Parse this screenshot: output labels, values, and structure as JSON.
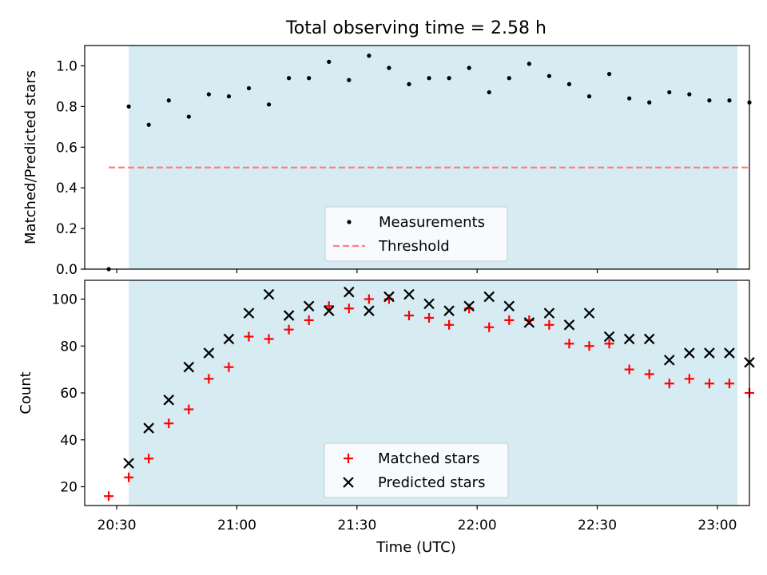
{
  "title": "Total observing time = 2.58 h",
  "xlabel": "Time (UTC)",
  "chart_data": [
    {
      "type": "scatter",
      "ylabel": "Matched/Predicted stars",
      "ylim": [
        0,
        1.1
      ],
      "yticks": [
        0.0,
        0.2,
        0.4,
        0.6,
        0.8,
        1.0
      ],
      "ytick_labels": [
        "0.0",
        "0.2",
        "0.4",
        "0.6",
        "0.8",
        "1.0"
      ],
      "xlim": [
        "20:22",
        "23:08"
      ],
      "shaded_span": [
        "20:33",
        "23:05"
      ],
      "shade_color": "#add8e6",
      "series": [
        {
          "name": "Measurements",
          "color": "#000000",
          "x": [
            "20:28",
            "20:33",
            "20:38",
            "20:43",
            "20:48",
            "20:53",
            "20:58",
            "21:03",
            "21:08",
            "21:13",
            "21:18",
            "21:23",
            "21:28",
            "21:33",
            "21:38",
            "21:43",
            "21:48",
            "21:53",
            "21:58",
            "22:03",
            "22:08",
            "22:13",
            "22:18",
            "22:23",
            "22:28",
            "22:33",
            "22:38",
            "22:43",
            "22:48",
            "22:53",
            "22:58",
            "23:03",
            "23:08"
          ],
          "y": [
            0.0,
            0.8,
            0.71,
            0.83,
            0.75,
            0.86,
            0.85,
            0.89,
            0.81,
            0.94,
            0.94,
            1.02,
            0.93,
            1.05,
            0.99,
            0.91,
            0.94,
            0.94,
            0.99,
            0.87,
            0.94,
            1.01,
            0.95,
            0.91,
            0.85,
            0.96,
            0.84,
            0.82,
            0.87,
            0.86,
            0.83,
            0.83,
            0.82
          ]
        }
      ],
      "threshold": {
        "name": "Threshold",
        "value": 0.5,
        "color": "#ff7f7f",
        "x": [
          "20:28",
          "23:08"
        ]
      },
      "legend": "lower center"
    },
    {
      "type": "scatter",
      "ylabel": "Count",
      "ylim": [
        12,
        108
      ],
      "yticks": [
        20,
        40,
        60,
        80,
        100
      ],
      "ytick_labels": [
        "20",
        "40",
        "60",
        "80",
        "100"
      ],
      "xlim": [
        "20:22",
        "23:08"
      ],
      "shaded_span": [
        "20:33",
        "23:05"
      ],
      "shade_color": "#add8e6",
      "series": [
        {
          "name": "Matched stars",
          "color": "#ff0000",
          "marker": "+",
          "x": [
            "20:28",
            "20:33",
            "20:38",
            "20:43",
            "20:48",
            "20:53",
            "20:58",
            "21:03",
            "21:08",
            "21:13",
            "21:18",
            "21:23",
            "21:28",
            "21:33",
            "21:38",
            "21:43",
            "21:48",
            "21:53",
            "21:58",
            "22:03",
            "22:08",
            "22:13",
            "22:18",
            "22:23",
            "22:28",
            "22:33",
            "22:38",
            "22:43",
            "22:48",
            "22:53",
            "22:58",
            "23:03",
            "23:08"
          ],
          "y": [
            16,
            24,
            32,
            47,
            53,
            66,
            71,
            84,
            83,
            87,
            91,
            97,
            96,
            100,
            100,
            93,
            92,
            89,
            96,
            88,
            91,
            91,
            89,
            81,
            80,
            81,
            70,
            68,
            64,
            66,
            64,
            64,
            60
          ]
        },
        {
          "name": "Predicted stars",
          "color": "#000000",
          "marker": "x",
          "x": [
            "20:33",
            "20:38",
            "20:43",
            "20:48",
            "20:53",
            "20:58",
            "21:03",
            "21:08",
            "21:13",
            "21:18",
            "21:23",
            "21:28",
            "21:33",
            "21:38",
            "21:43",
            "21:48",
            "21:53",
            "21:58",
            "22:03",
            "22:08",
            "22:13",
            "22:18",
            "22:23",
            "22:28",
            "22:33",
            "22:38",
            "22:43",
            "22:48",
            "22:53",
            "22:58",
            "23:03",
            "23:08"
          ],
          "y": [
            30,
            45,
            57,
            71,
            77,
            83,
            94,
            102,
            93,
            97,
            95,
            103,
            95,
            101,
            102,
            98,
            95,
            97,
            101,
            97,
            90,
            94,
            89,
            94,
            84,
            83,
            83,
            74,
            77,
            77,
            77,
            73
          ]
        }
      ],
      "legend": "lower center"
    }
  ],
  "x_axis": {
    "ticks": [
      "20:30",
      "21:00",
      "21:30",
      "22:00",
      "22:30",
      "23:00"
    ],
    "tick_labels": [
      "20:30",
      "21:00",
      "21:30",
      "22:00",
      "22:30",
      "23:00"
    ]
  }
}
